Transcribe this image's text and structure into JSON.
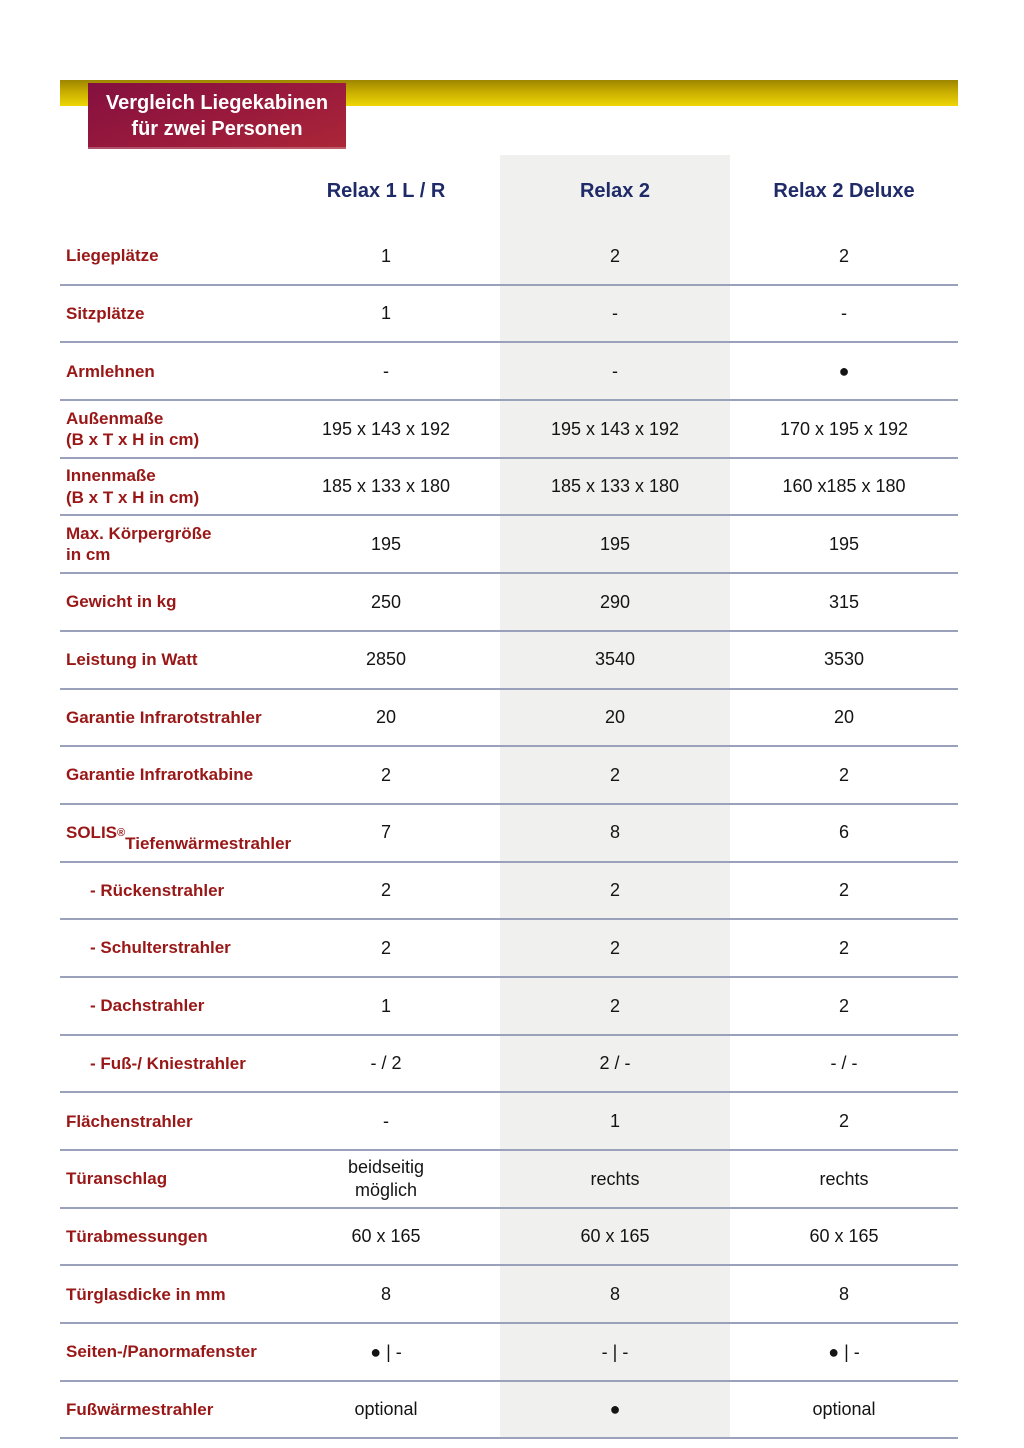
{
  "header": {
    "badge_line1": "Vergleich Liegekabinen",
    "badge_line2": "für zwei Personen"
  },
  "colors": {
    "badge_gradient_top": "#84103f",
    "badge_gradient_bottom": "#ab2737",
    "topbar_gradient_top": "#9d8500",
    "topbar_gradient_bottom": "#eed606",
    "row_label_red": "#991717",
    "column_header_navy": "#1f2a68",
    "divider_blue_gray": "#99a2ba",
    "highlight_column_gray": "#f0f0ef"
  },
  "table": {
    "columns": [
      "Relax 1 L / R",
      "Relax 2",
      "Relax 2 Deluxe"
    ],
    "highlight_column": 1,
    "rows": [
      {
        "label": "Liegeplätze",
        "values": [
          "1",
          "2",
          "2"
        ]
      },
      {
        "label": "Sitzplätze",
        "values": [
          "1",
          "-",
          "-"
        ]
      },
      {
        "label": "Armlehnen",
        "values": [
          "-",
          "-",
          "●"
        ]
      },
      {
        "label": "Außenmaße\n(B x T x H in cm)",
        "values": [
          "195 x 143 x 192",
          "195 x 143 x 192",
          "170 x 195 x 192"
        ]
      },
      {
        "label": "Innenmaße\n(B x T x H in cm)",
        "values": [
          "185 x 133 x 180",
          "185 x 133 x 180",
          "160 x185 x 180"
        ]
      },
      {
        "label": "Max. Körpergröße\nin cm",
        "values": [
          "195",
          "195",
          "195"
        ]
      },
      {
        "label": "Gewicht in kg",
        "values": [
          "250",
          "290",
          "315"
        ]
      },
      {
        "label": "Leistung in Watt",
        "values": [
          "2850",
          "3540",
          "3530"
        ]
      },
      {
        "label": "Garantie Infrarotstrahler",
        "values": [
          "20",
          "20",
          "20"
        ]
      },
      {
        "label": "Garantie Infrarotkabine",
        "values": [
          "2",
          "2",
          "2"
        ]
      },
      {
        "label": "SOLIS®\nTiefenwärmestrahler",
        "values": [
          "7",
          "8",
          "6"
        ]
      },
      {
        "label": "- Rückenstrahler",
        "sub": true,
        "values": [
          "2",
          "2",
          "2"
        ]
      },
      {
        "label": "- Schulterstrahler",
        "sub": true,
        "values": [
          "2",
          "2",
          "2"
        ]
      },
      {
        "label": "- Dachstrahler",
        "sub": true,
        "values": [
          "1",
          "2",
          "2"
        ]
      },
      {
        "label": "- Fuß-/ Kniestrahler",
        "sub": true,
        "values": [
          "- / 2",
          "2 / -",
          "- / -"
        ]
      },
      {
        "label": "Flächenstrahler",
        "values": [
          "-",
          "1",
          "2"
        ]
      },
      {
        "label": "Türanschlag",
        "values": [
          "beidseitig\nmöglich",
          "rechts",
          "rechts"
        ]
      },
      {
        "label": "Türabmessungen",
        "values": [
          "60 x 165",
          "60 x 165",
          "60 x 165"
        ]
      },
      {
        "label": "Türglasdicke in mm",
        "values": [
          "8",
          "8",
          "8"
        ]
      },
      {
        "label": "Seiten-/Panormafenster",
        "values": [
          "● | -",
          "- | -",
          "● | -"
        ]
      },
      {
        "label": "Fußwärmestrahler",
        "values": [
          "optional",
          "●",
          "optional"
        ]
      }
    ]
  }
}
